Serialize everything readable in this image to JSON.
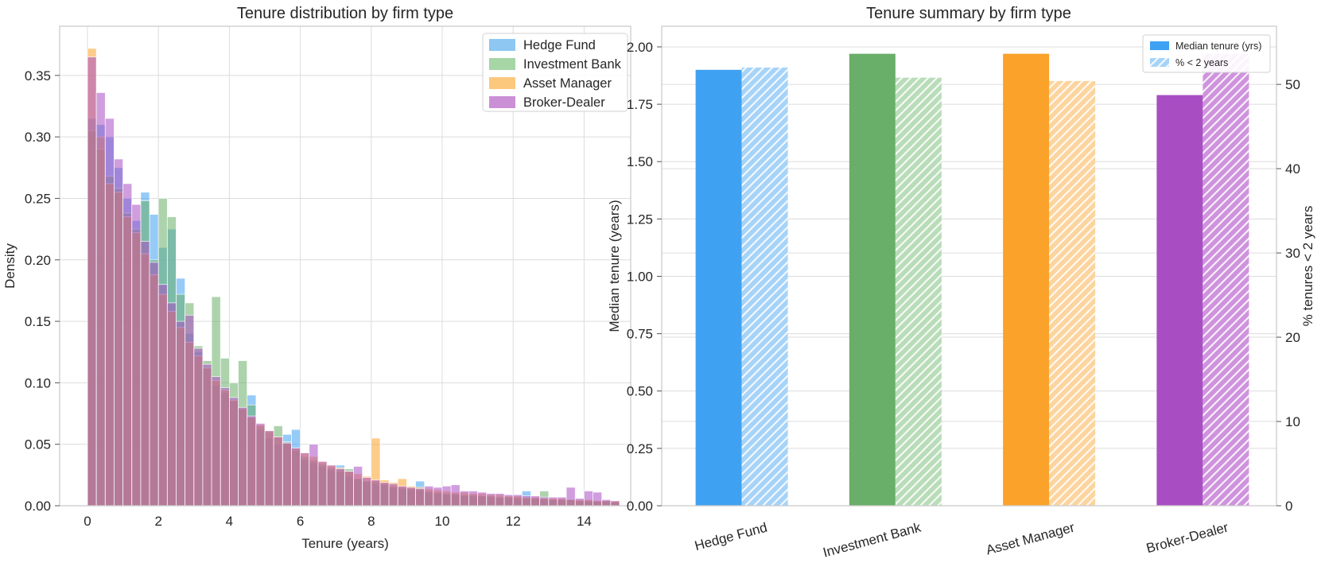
{
  "style": {
    "background": "#ffffff",
    "text_color": "#262626",
    "grid_color": "#dcdcdc",
    "frame_color": "#cccccc",
    "tick_color": "#555555"
  },
  "chart_data": [
    {
      "type": "histogram",
      "title": "Tenure distribution by firm type",
      "xlabel": "Tenure (years)",
      "ylabel": "Density",
      "bin_start": 0,
      "bin_width": 0.25,
      "xlim": [
        -0.78,
        15.3
      ],
      "ylim": [
        0,
        0.39
      ],
      "xticks": [
        0,
        2,
        4,
        6,
        8,
        10,
        12,
        14
      ],
      "yticks": [
        "0.00",
        "0.05",
        "0.10",
        "0.15",
        "0.20",
        "0.25",
        "0.30",
        "0.35"
      ],
      "grid": true,
      "alpha": 0.55,
      "legend_position": "upper right",
      "series": [
        {
          "name": "Hedge Fund",
          "color": "#3fa1f1",
          "legend_swatch": "#8ec7f2",
          "values": [
            0.315,
            0.31,
            0.3,
            0.275,
            0.25,
            0.232,
            0.255,
            0.237,
            0.21,
            0.225,
            0.185,
            0.14,
            0.125,
            0.112,
            0.098,
            0.092,
            0.085,
            0.08,
            0.09,
            0.062,
            0.055,
            0.05,
            0.058,
            0.062,
            0.038,
            0.035,
            0.032,
            0.029,
            0.033,
            0.024,
            0.022,
            0.02,
            0.018,
            0.017,
            0.015,
            0.014,
            0.013,
            0.02,
            0.011,
            0.01,
            0.009,
            0.009,
            0.008,
            0.008,
            0.008,
            0.007,
            0.007,
            0.007,
            0.006,
            0.012,
            0.006,
            0.005,
            0.005,
            0.005,
            0.005,
            0.004,
            0.004,
            0.004,
            0.004,
            0.003
          ]
        },
        {
          "name": "Investment Bank",
          "color": "#69ae69",
          "legend_swatch": "#a6d5a6",
          "values": [
            0.305,
            0.29,
            0.268,
            0.258,
            0.238,
            0.225,
            0.248,
            0.2,
            0.25,
            0.235,
            0.172,
            0.165,
            0.13,
            0.118,
            0.17,
            0.12,
            0.1,
            0.118,
            0.082,
            0.065,
            0.06,
            0.065,
            0.052,
            0.045,
            0.04,
            0.037,
            0.034,
            0.031,
            0.028,
            0.03,
            0.022,
            0.02,
            0.02,
            0.018,
            0.016,
            0.015,
            0.014,
            0.013,
            0.012,
            0.011,
            0.01,
            0.01,
            0.009,
            0.009,
            0.008,
            0.008,
            0.007,
            0.007,
            0.007,
            0.006,
            0.006,
            0.012,
            0.005,
            0.005,
            0.005,
            0.004,
            0.004,
            0.004,
            0.004,
            0.003
          ]
        },
        {
          "name": "Asset Manager",
          "color": "#fba22a",
          "legend_swatch": "#fbc87e",
          "values": [
            0.372,
            0.3,
            0.262,
            0.255,
            0.235,
            0.222,
            0.205,
            0.188,
            0.172,
            0.158,
            0.145,
            0.133,
            0.122,
            0.112,
            0.102,
            0.094,
            0.086,
            0.079,
            0.072,
            0.066,
            0.061,
            0.056,
            0.051,
            0.047,
            0.043,
            0.04,
            0.036,
            0.033,
            0.031,
            0.028,
            0.026,
            0.024,
            0.055,
            0.021,
            0.019,
            0.022,
            0.016,
            0.015,
            0.014,
            0.013,
            0.012,
            0.011,
            0.011,
            0.01,
            0.01,
            0.009,
            0.009,
            0.008,
            0.008,
            0.007,
            0.007,
            0.006,
            0.006,
            0.006,
            0.005,
            0.005,
            0.005,
            0.004,
            0.004,
            0.004
          ]
        },
        {
          "name": "Broker-Dealer",
          "color": "#a94ec2",
          "legend_swatch": "#cb8fd6",
          "values": [
            0.365,
            0.336,
            0.315,
            0.282,
            0.262,
            0.245,
            0.215,
            0.198,
            0.18,
            0.165,
            0.15,
            0.155,
            0.128,
            0.115,
            0.105,
            0.096,
            0.088,
            0.08,
            0.073,
            0.067,
            0.061,
            0.056,
            0.051,
            0.047,
            0.043,
            0.05,
            0.036,
            0.033,
            0.03,
            0.028,
            0.032,
            0.023,
            0.021,
            0.019,
            0.018,
            0.016,
            0.015,
            0.014,
            0.016,
            0.015,
            0.016,
            0.017,
            0.012,
            0.012,
            0.011,
            0.01,
            0.01,
            0.009,
            0.009,
            0.008,
            0.008,
            0.007,
            0.007,
            0.007,
            0.015,
            0.006,
            0.012,
            0.011,
            0.005,
            0.004
          ]
        }
      ]
    },
    {
      "type": "bar",
      "title": "Tenure summary by firm type",
      "categories": [
        "Hedge Fund",
        "Investment Bank",
        "Asset Manager",
        "Broker-Dealer"
      ],
      "ylabel_left": "Median tenure (years)",
      "ylabel_right": "% tenures < 2 years",
      "ylim_left": [
        0,
        2.09
      ],
      "ylim_right": [
        0,
        56.9
      ],
      "yticks_left": [
        "0.00",
        "0.25",
        "0.50",
        "0.75",
        "1.00",
        "1.25",
        "1.50",
        "1.75",
        "2.00"
      ],
      "yticks_right": [
        0,
        10,
        20,
        30,
        40,
        50
      ],
      "grid": true,
      "legend_position": "upper right",
      "series": [
        {
          "name": "Median tenure (yrs)",
          "axis": "left",
          "style": "solid",
          "values": [
            1.9,
            1.97,
            1.97,
            1.79
          ]
        },
        {
          "name": "% < 2 years",
          "axis": "right",
          "style": "hatched",
          "values": [
            52.0,
            50.8,
            50.4,
            53.6
          ]
        }
      ],
      "category_colors": {
        "solid": [
          "#3fa1f1",
          "#69ae69",
          "#fba22a",
          "#a94ec2"
        ],
        "hatched": [
          "#a6d3f8",
          "#b9dcb9",
          "#fcd49e",
          "#cf93dd"
        ]
      }
    }
  ]
}
